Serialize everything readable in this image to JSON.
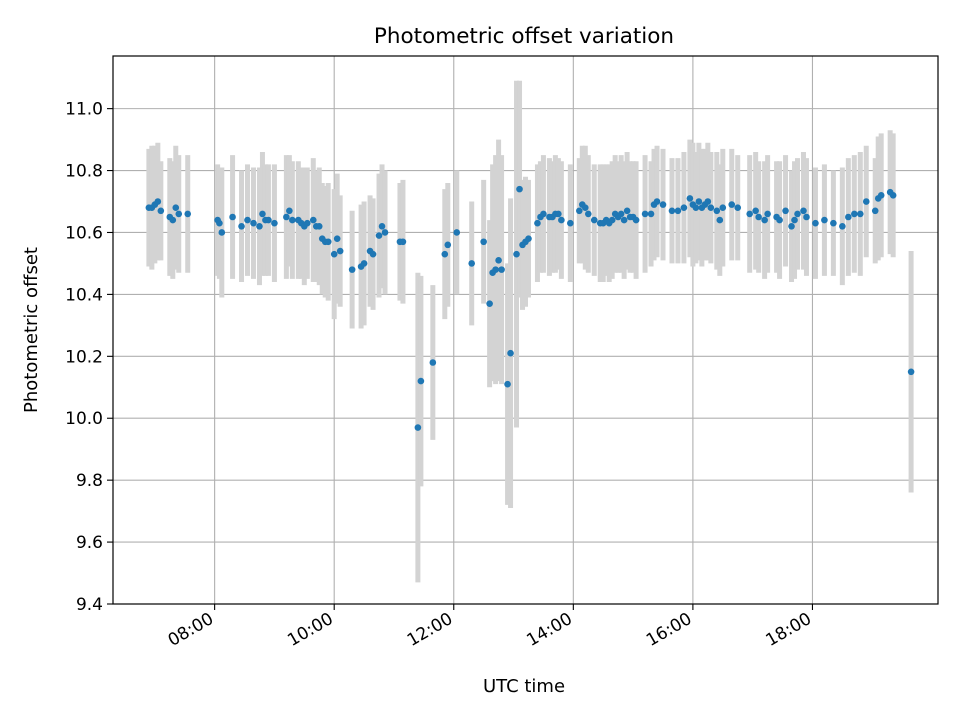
{
  "chart_data": {
    "type": "scatter",
    "title": "Photometric offset variation",
    "xlabel": "UTC time",
    "ylabel": "Photometric offset",
    "x_unit": "UTC time (decimal hours)",
    "xlim": [
      6.3,
      20.1
    ],
    "ylim": [
      9.4,
      11.17
    ],
    "x_ticks": [
      {
        "value": 8,
        "label": "08:00"
      },
      {
        "value": 10,
        "label": "10:00"
      },
      {
        "value": 12,
        "label": "12:00"
      },
      {
        "value": 14,
        "label": "14:00"
      },
      {
        "value": 16,
        "label": "16:00"
      },
      {
        "value": 18,
        "label": "18:00"
      }
    ],
    "y_ticks": [
      {
        "value": 9.4,
        "label": "9.4"
      },
      {
        "value": 9.6,
        "label": "9.6"
      },
      {
        "value": 9.8,
        "label": "9.8"
      },
      {
        "value": 10.0,
        "label": "10.0"
      },
      {
        "value": 10.2,
        "label": "10.2"
      },
      {
        "value": 10.4,
        "label": "10.4"
      },
      {
        "value": 10.6,
        "label": "10.6"
      },
      {
        "value": 10.8,
        "label": "10.8"
      },
      {
        "value": 11.0,
        "label": "11.0"
      }
    ],
    "grid": true,
    "colors": {
      "point": "#1f77b4",
      "errorbar": "#d3d3d3",
      "grid": "#b0b0b0"
    },
    "series": [
      {
        "points": [
          [
            6.9,
            10.68,
            0.19
          ],
          [
            6.95,
            10.68,
            0.2
          ],
          [
            7.0,
            10.69,
            0.19
          ],
          [
            7.05,
            10.7,
            0.19
          ],
          [
            7.1,
            10.67,
            0.16
          ],
          [
            7.25,
            10.65,
            0.19
          ],
          [
            7.3,
            10.64,
            0.19
          ],
          [
            7.35,
            10.68,
            0.2
          ],
          [
            7.4,
            10.66,
            0.19
          ],
          [
            7.55,
            10.66,
            0.19
          ],
          [
            8.05,
            10.64,
            0.18
          ],
          [
            8.08,
            10.63,
            0.18
          ],
          [
            8.12,
            10.6,
            0.21
          ],
          [
            8.3,
            10.65,
            0.2
          ],
          [
            8.45,
            10.62,
            0.18
          ],
          [
            8.55,
            10.64,
            0.18
          ],
          [
            8.65,
            10.63,
            0.18
          ],
          [
            8.75,
            10.62,
            0.19
          ],
          [
            8.8,
            10.66,
            0.2
          ],
          [
            8.85,
            10.64,
            0.18
          ],
          [
            8.9,
            10.64,
            0.18
          ],
          [
            9.0,
            10.63,
            0.19
          ],
          [
            9.2,
            10.65,
            0.2
          ],
          [
            9.25,
            10.67,
            0.18
          ],
          [
            9.3,
            10.64,
            0.19
          ],
          [
            9.4,
            10.64,
            0.19
          ],
          [
            9.45,
            10.63,
            0.18
          ],
          [
            9.5,
            10.62,
            0.19
          ],
          [
            9.55,
            10.63,
            0.18
          ],
          [
            9.65,
            10.64,
            0.2
          ],
          [
            9.7,
            10.62,
            0.18
          ],
          [
            9.75,
            10.62,
            0.19
          ],
          [
            9.8,
            10.58,
            0.18
          ],
          [
            9.85,
            10.57,
            0.18
          ],
          [
            9.9,
            10.57,
            0.19
          ],
          [
            10.0,
            10.53,
            0.21
          ],
          [
            10.05,
            10.58,
            0.21
          ],
          [
            10.1,
            10.54,
            0.18
          ],
          [
            10.3,
            10.48,
            0.19
          ],
          [
            10.45,
            10.49,
            0.2
          ],
          [
            10.5,
            10.5,
            0.2
          ],
          [
            10.6,
            10.54,
            0.18
          ],
          [
            10.65,
            10.53,
            0.18
          ],
          [
            10.75,
            10.59,
            0.2
          ],
          [
            10.8,
            10.62,
            0.2
          ],
          [
            10.85,
            10.6,
            0.2
          ],
          [
            11.1,
            10.57,
            0.19
          ],
          [
            11.15,
            10.57,
            0.2
          ],
          [
            11.4,
            9.97,
            0.5
          ],
          [
            11.45,
            10.12,
            0.34
          ],
          [
            11.65,
            10.18,
            0.25
          ],
          [
            11.85,
            10.53,
            0.21
          ],
          [
            11.9,
            10.56,
            0.2
          ],
          [
            12.05,
            10.6,
            0.2
          ],
          [
            12.3,
            10.5,
            0.2
          ],
          [
            12.5,
            10.57,
            0.2
          ],
          [
            12.6,
            10.37,
            0.27
          ],
          [
            12.65,
            10.47,
            0.35
          ],
          [
            12.7,
            10.48,
            0.37
          ],
          [
            12.75,
            10.51,
            0.39
          ],
          [
            12.8,
            10.48,
            0.37
          ],
          [
            12.9,
            10.11,
            0.39
          ],
          [
            12.95,
            10.21,
            0.5
          ],
          [
            13.05,
            10.53,
            0.56
          ],
          [
            13.1,
            10.74,
            0.35
          ],
          [
            13.15,
            10.56,
            0.21
          ],
          [
            13.2,
            10.57,
            0.21
          ],
          [
            13.25,
            10.58,
            0.19
          ],
          [
            13.4,
            10.63,
            0.19
          ],
          [
            13.45,
            10.65,
            0.18
          ],
          [
            13.5,
            10.66,
            0.19
          ],
          [
            13.6,
            10.65,
            0.19
          ],
          [
            13.65,
            10.65,
            0.18
          ],
          [
            13.7,
            10.66,
            0.19
          ],
          [
            13.75,
            10.66,
            0.18
          ],
          [
            13.8,
            10.64,
            0.19
          ],
          [
            13.95,
            10.63,
            0.19
          ],
          [
            14.1,
            10.67,
            0.17
          ],
          [
            14.15,
            10.69,
            0.19
          ],
          [
            14.2,
            10.68,
            0.2
          ],
          [
            14.25,
            10.66,
            0.19
          ],
          [
            14.35,
            10.64,
            0.18
          ],
          [
            14.45,
            10.63,
            0.19
          ],
          [
            14.5,
            10.63,
            0.19
          ],
          [
            14.55,
            10.64,
            0.18
          ],
          [
            14.6,
            10.63,
            0.19
          ],
          [
            14.65,
            10.64,
            0.19
          ],
          [
            14.7,
            10.66,
            0.19
          ],
          [
            14.75,
            10.65,
            0.18
          ],
          [
            14.8,
            10.66,
            0.19
          ],
          [
            14.85,
            10.64,
            0.19
          ],
          [
            14.9,
            10.67,
            0.19
          ],
          [
            14.95,
            10.65,
            0.18
          ],
          [
            15.0,
            10.65,
            0.18
          ],
          [
            15.05,
            10.64,
            0.19
          ],
          [
            15.2,
            10.66,
            0.19
          ],
          [
            15.3,
            10.66,
            0.17
          ],
          [
            15.35,
            10.69,
            0.18
          ],
          [
            15.4,
            10.7,
            0.18
          ],
          [
            15.5,
            10.69,
            0.18
          ],
          [
            15.65,
            10.67,
            0.17
          ],
          [
            15.75,
            10.67,
            0.17
          ],
          [
            15.85,
            10.68,
            0.18
          ],
          [
            15.95,
            10.71,
            0.19
          ],
          [
            16.0,
            10.69,
            0.2
          ],
          [
            16.05,
            10.68,
            0.18
          ],
          [
            16.1,
            10.7,
            0.19
          ],
          [
            16.15,
            10.68,
            0.19
          ],
          [
            16.2,
            10.69,
            0.18
          ],
          [
            16.25,
            10.7,
            0.19
          ],
          [
            16.3,
            10.68,
            0.18
          ],
          [
            16.4,
            10.67,
            0.19
          ],
          [
            16.45,
            10.64,
            0.18
          ],
          [
            16.5,
            10.68,
            0.19
          ],
          [
            16.65,
            10.69,
            0.18
          ],
          [
            16.75,
            10.68,
            0.17
          ],
          [
            16.95,
            10.66,
            0.19
          ],
          [
            17.05,
            10.67,
            0.19
          ],
          [
            17.1,
            10.65,
            0.18
          ],
          [
            17.2,
            10.64,
            0.19
          ],
          [
            17.25,
            10.66,
            0.19
          ],
          [
            17.4,
            10.65,
            0.18
          ],
          [
            17.45,
            10.64,
            0.19
          ],
          [
            17.55,
            10.67,
            0.18
          ],
          [
            17.65,
            10.62,
            0.18
          ],
          [
            17.7,
            10.64,
            0.19
          ],
          [
            17.75,
            10.66,
            0.18
          ],
          [
            17.85,
            10.67,
            0.19
          ],
          [
            17.9,
            10.65,
            0.19
          ],
          [
            18.05,
            10.63,
            0.18
          ],
          [
            18.2,
            10.64,
            0.18
          ],
          [
            18.35,
            10.63,
            0.17
          ],
          [
            18.5,
            10.62,
            0.19
          ],
          [
            18.6,
            10.65,
            0.19
          ],
          [
            18.7,
            10.66,
            0.19
          ],
          [
            18.8,
            10.66,
            0.2
          ],
          [
            18.9,
            10.7,
            0.18
          ],
          [
            19.05,
            10.67,
            0.17
          ],
          [
            19.1,
            10.71,
            0.2
          ],
          [
            19.15,
            10.72,
            0.2
          ],
          [
            19.3,
            10.73,
            0.2
          ],
          [
            19.35,
            10.72,
            0.2
          ],
          [
            19.65,
            10.15,
            0.39
          ]
        ]
      }
    ]
  }
}
